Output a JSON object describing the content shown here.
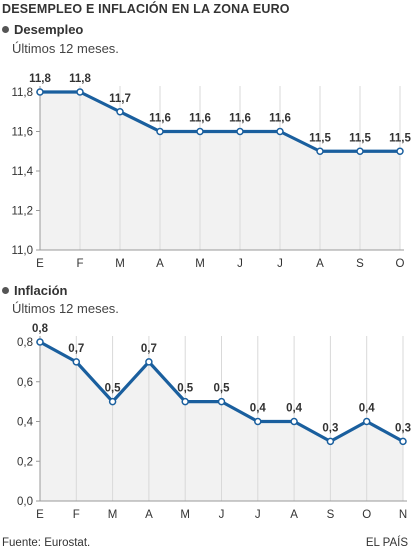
{
  "header": {
    "title": "DESEMPLEO E INFLACIÓN EN LA ZONA EURO"
  },
  "sections": [
    {
      "title": "Desempleo",
      "subtitle": "Últimos 12 meses."
    },
    {
      "title": "Inflación",
      "subtitle": "Últimos 12 meses."
    }
  ],
  "footer": {
    "source": "Fuente: Eurostat.",
    "credit": "EL PAÍS"
  },
  "colors": {
    "line": "#1a5f9e",
    "fill": "#f2f2f2",
    "grid": "#d9d9d9",
    "axis": "#999999",
    "text": "#333333"
  },
  "chart_data": [
    {
      "type": "area",
      "title": "Desempleo",
      "subtitle": "Últimos 12 meses.",
      "categories": [
        "E",
        "F",
        "M",
        "A",
        "M",
        "J",
        "J",
        "A",
        "S",
        "O"
      ],
      "values": [
        11.8,
        11.8,
        11.7,
        11.6,
        11.6,
        11.6,
        11.6,
        11.5,
        11.5,
        11.5
      ],
      "data_labels": [
        "11,8",
        "11,8",
        "11,7",
        "11,6",
        "11,6",
        "11,6",
        "11,6",
        "11,5",
        "11,5",
        "11,5"
      ],
      "yticks": [
        "11,8",
        "11,6",
        "11,4",
        "11,2",
        "11,0"
      ],
      "ylim": [
        11.0,
        11.8
      ],
      "grid": "vertical"
    },
    {
      "type": "area",
      "title": "Inflación",
      "subtitle": "Últimos 12 meses.",
      "categories": [
        "E",
        "F",
        "M",
        "A",
        "M",
        "J",
        "J",
        "A",
        "S",
        "O",
        "N"
      ],
      "values": [
        0.8,
        0.7,
        0.5,
        0.7,
        0.5,
        0.5,
        0.4,
        0.4,
        0.3,
        0.4,
        0.3
      ],
      "data_labels": [
        "0,8",
        "0,7",
        "0,5",
        "0,7",
        "0,5",
        "0,5",
        "0,4",
        "0,4",
        "0,3",
        "0,4",
        "0,3"
      ],
      "yticks": [
        "0,8",
        "0,6",
        "0,4",
        "0,2",
        "0,0"
      ],
      "ylim": [
        0.0,
        0.8
      ],
      "grid": "vertical"
    }
  ]
}
